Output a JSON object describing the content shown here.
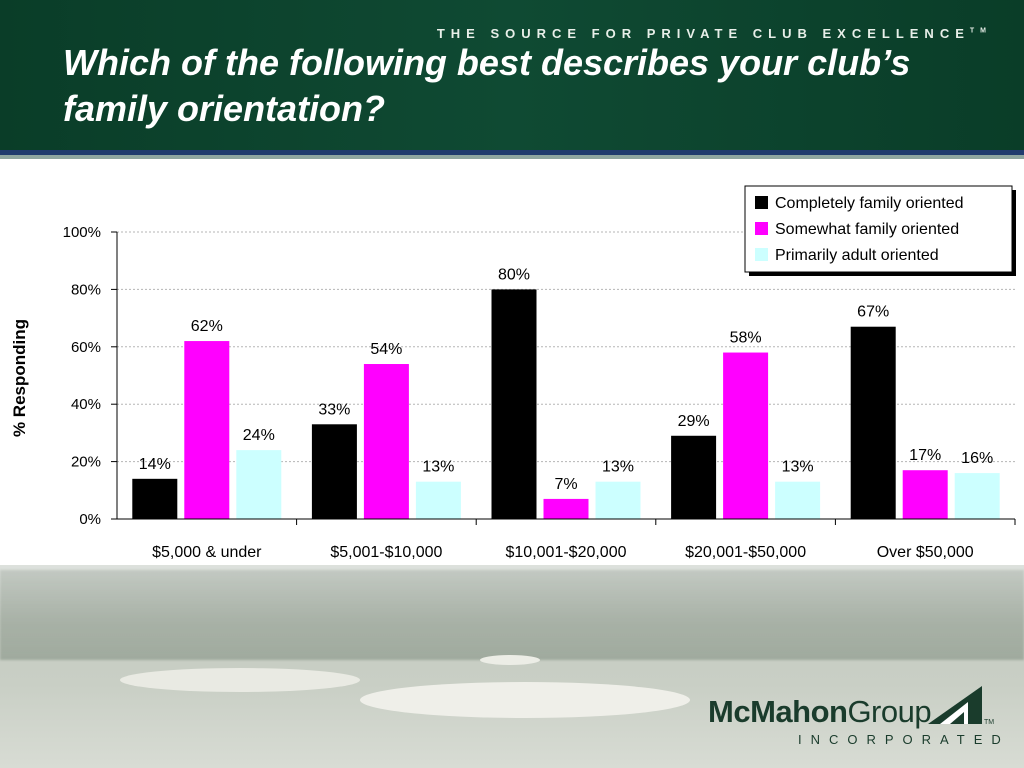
{
  "header": {
    "tagline": "THE SOURCE FOR PRIVATE CLUB EXCELLENCE",
    "tagline_mark": "TM",
    "title": "Which of the following best describes your club’s family orientation?"
  },
  "logo": {
    "name_bold": "McMahon",
    "name_regular": "Group",
    "subtitle": "INCORPORATED",
    "mark": "TM"
  },
  "chart_data": {
    "type": "bar",
    "title": "Which of the following best describes your club’s family orientation?",
    "xlabel": "",
    "ylabel": "% Responding",
    "ylim": [
      0,
      100
    ],
    "yticks": [
      "0%",
      "20%",
      "40%",
      "60%",
      "80%",
      "100%"
    ],
    "grid": true,
    "legend_position": "top-right",
    "categories": [
      "$5,000 & under",
      "$5,001-$10,000",
      "$10,001-$20,000",
      "$20,001-$50,000",
      "Over $50,000"
    ],
    "series": [
      {
        "name": "Completely family oriented",
        "color": "#000000",
        "values": [
          14,
          33,
          80,
          29,
          67
        ],
        "labels": [
          "14%",
          "33%",
          "80%",
          "29%",
          "67%"
        ]
      },
      {
        "name": "Somewhat family oriented",
        "color": "#ff00ff",
        "values": [
          62,
          54,
          7,
          58,
          17
        ],
        "labels": [
          "62%",
          "54%",
          "7%",
          "58%",
          "17%"
        ]
      },
      {
        "name": "Primarily adult oriented",
        "color": "#ccffff",
        "values": [
          24,
          13,
          13,
          13,
          16
        ],
        "labels": [
          "24%",
          "13%",
          "13%",
          "13%",
          "16%"
        ]
      }
    ]
  }
}
